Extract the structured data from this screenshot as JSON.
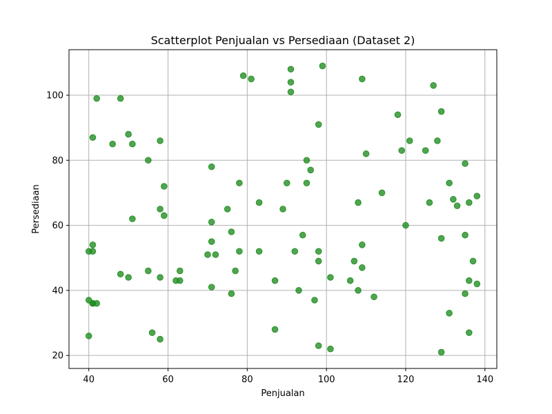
{
  "chart_data": {
    "type": "scatter",
    "title": "Scatterplot Penjualan vs Persediaan (Dataset 2)",
    "xlabel": "Penjualan",
    "ylabel": "Persediaan",
    "xlim": [
      35,
      143
    ],
    "ylim": [
      16,
      114
    ],
    "xticks": [
      40,
      60,
      80,
      100,
      120,
      140
    ],
    "yticks": [
      20,
      40,
      60,
      80,
      100
    ],
    "grid": true,
    "color": "#1f8c1f",
    "points": [
      [
        42,
        99
      ],
      [
        48,
        99
      ],
      [
        41,
        87
      ],
      [
        46,
        85
      ],
      [
        50,
        88
      ],
      [
        51,
        85
      ],
      [
        55,
        80
      ],
      [
        58,
        86
      ],
      [
        59,
        72
      ],
      [
        58,
        65
      ],
      [
        59,
        63
      ],
      [
        51,
        62
      ],
      [
        40,
        52
      ],
      [
        41,
        52
      ],
      [
        41,
        54
      ],
      [
        40,
        37
      ],
      [
        41,
        36
      ],
      [
        41,
        36
      ],
      [
        42,
        36
      ],
      [
        40,
        26
      ],
      [
        48,
        45
      ],
      [
        50,
        44
      ],
      [
        55,
        46
      ],
      [
        58,
        44
      ],
      [
        56,
        27
      ],
      [
        58,
        25
      ],
      [
        62,
        43
      ],
      [
        63,
        43
      ],
      [
        63,
        46
      ],
      [
        70,
        51
      ],
      [
        71,
        55
      ],
      [
        72,
        51
      ],
      [
        71,
        61
      ],
      [
        71,
        78
      ],
      [
        71,
        41
      ],
      [
        75,
        65
      ],
      [
        76,
        58
      ],
      [
        77,
        46
      ],
      [
        76,
        39
      ],
      [
        78,
        52
      ],
      [
        78,
        73
      ],
      [
        79,
        106
      ],
      [
        81,
        105
      ],
      [
        83,
        67
      ],
      [
        83,
        52
      ],
      [
        87,
        43
      ],
      [
        87,
        28
      ],
      [
        89,
        65
      ],
      [
        90,
        73
      ],
      [
        91,
        108
      ],
      [
        91,
        104
      ],
      [
        91,
        101
      ],
      [
        92,
        52
      ],
      [
        93,
        40
      ],
      [
        94,
        57
      ],
      [
        95,
        80
      ],
      [
        95,
        73
      ],
      [
        96,
        77
      ],
      [
        97,
        37
      ],
      [
        98,
        91
      ],
      [
        98,
        52
      ],
      [
        98,
        49
      ],
      [
        98,
        23
      ],
      [
        99,
        109
      ],
      [
        101,
        44
      ],
      [
        101,
        22
      ],
      [
        106,
        43
      ],
      [
        107,
        49
      ],
      [
        108,
        67
      ],
      [
        108,
        40
      ],
      [
        109,
        105
      ],
      [
        109,
        54
      ],
      [
        109,
        47
      ],
      [
        110,
        82
      ],
      [
        112,
        38
      ],
      [
        114,
        70
      ],
      [
        118,
        94
      ],
      [
        119,
        83
      ],
      [
        120,
        60
      ],
      [
        121,
        86
      ],
      [
        125,
        83
      ],
      [
        126,
        67
      ],
      [
        127,
        103
      ],
      [
        128,
        86
      ],
      [
        129,
        95
      ],
      [
        129,
        56
      ],
      [
        129,
        21
      ],
      [
        131,
        73
      ],
      [
        131,
        33
      ],
      [
        132,
        68
      ],
      [
        133,
        66
      ],
      [
        135,
        79
      ],
      [
        135,
        57
      ],
      [
        135,
        39
      ],
      [
        136,
        67
      ],
      [
        136,
        43
      ],
      [
        136,
        27
      ],
      [
        137,
        49
      ],
      [
        138,
        69
      ],
      [
        138,
        42
      ]
    ]
  }
}
